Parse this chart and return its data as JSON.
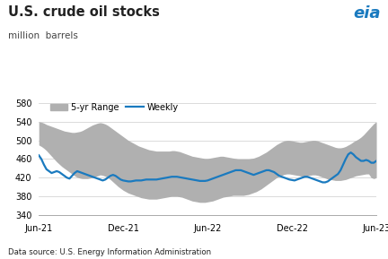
{
  "title": "U.S. crude oil stocks",
  "subtitle": "million  barrels",
  "background_color": "#ffffff",
  "range_color": "#b0b0b0",
  "weekly_color": "#1a7abf",
  "grid_color": "#cccccc",
  "data_source": "Data source: U.S. Energy Information Administration",
  "eia_color": "#1a7abf",
  "weekly_lw": 1.6,
  "ylim": [
    340,
    590
  ],
  "yticks": [
    340,
    380,
    420,
    460,
    500,
    540,
    580
  ],
  "x_tick_labels": [
    "Jun-21",
    "Dec-21",
    "Jun-22",
    "Dec-22",
    "Jun-23"
  ],
  "range_upper": [
    540,
    539,
    537,
    534,
    532,
    530,
    528,
    526,
    524,
    522,
    520,
    519,
    518,
    517,
    517,
    518,
    519,
    521,
    524,
    527,
    530,
    533,
    535,
    537,
    538,
    537,
    535,
    532,
    528,
    524,
    520,
    516,
    512,
    508,
    504,
    500,
    497,
    494,
    491,
    488,
    486,
    484,
    482,
    480,
    479,
    478,
    477,
    477,
    477,
    477,
    477,
    477,
    478,
    478,
    477,
    476,
    474,
    472,
    470,
    468,
    466,
    465,
    464,
    463,
    462,
    461,
    461,
    462,
    463,
    464,
    465,
    466,
    466,
    465,
    464,
    463,
    462,
    461,
    460,
    460,
    460,
    460,
    460,
    461,
    462,
    464,
    466,
    469,
    472,
    475,
    479,
    483,
    487,
    491,
    494,
    497,
    499,
    500,
    500,
    499,
    498,
    497,
    496,
    496,
    497,
    498,
    499,
    500,
    500,
    499,
    497,
    495,
    493,
    491,
    489,
    487,
    485,
    484,
    484,
    485,
    487,
    490,
    493,
    497,
    500,
    503,
    507,
    512,
    518,
    524,
    530,
    536,
    540
  ],
  "range_lower": [
    490,
    487,
    483,
    478,
    472,
    466,
    460,
    454,
    449,
    444,
    440,
    436,
    432,
    428,
    424,
    421,
    419,
    418,
    418,
    418,
    419,
    420,
    422,
    424,
    426,
    425,
    423,
    420,
    416,
    411,
    406,
    401,
    397,
    393,
    390,
    387,
    385,
    383,
    381,
    379,
    377,
    376,
    375,
    374,
    374,
    374,
    374,
    375,
    376,
    377,
    378,
    379,
    380,
    380,
    380,
    379,
    378,
    376,
    374,
    372,
    370,
    369,
    368,
    367,
    367,
    367,
    368,
    369,
    370,
    372,
    374,
    376,
    378,
    379,
    380,
    381,
    382,
    382,
    382,
    382,
    382,
    383,
    384,
    386,
    388,
    390,
    393,
    396,
    400,
    404,
    408,
    412,
    416,
    420,
    423,
    425,
    427,
    428,
    428,
    427,
    426,
    425,
    424,
    423,
    423,
    424,
    425,
    426,
    426,
    425,
    423,
    421,
    419,
    417,
    416,
    415,
    414,
    414,
    414,
    415,
    416,
    418,
    420,
    422,
    424,
    425,
    426,
    427,
    428,
    428,
    420,
    418,
    420
  ],
  "weekly": [
    468,
    460,
    448,
    438,
    434,
    430,
    432,
    434,
    432,
    428,
    424,
    420,
    418,
    424,
    430,
    434,
    432,
    430,
    428,
    426,
    424,
    422,
    420,
    418,
    416,
    414,
    416,
    420,
    424,
    426,
    424,
    420,
    416,
    414,
    413,
    412,
    412,
    413,
    414,
    414,
    414,
    415,
    416,
    416,
    416,
    416,
    416,
    417,
    418,
    419,
    420,
    421,
    422,
    422,
    422,
    421,
    420,
    419,
    418,
    417,
    416,
    415,
    414,
    413,
    413,
    413,
    414,
    416,
    418,
    420,
    422,
    424,
    426,
    428,
    430,
    432,
    434,
    436,
    436,
    436,
    434,
    432,
    430,
    428,
    426,
    428,
    430,
    432,
    434,
    436,
    436,
    434,
    432,
    428,
    424,
    422,
    420,
    418,
    416,
    415,
    414,
    416,
    418,
    420,
    422,
    422,
    420,
    418,
    416,
    414,
    412,
    410,
    410,
    412,
    416,
    420,
    424,
    428,
    436,
    448,
    460,
    470,
    474,
    470,
    464,
    460,
    456,
    456,
    458,
    456,
    452,
    452,
    456
  ]
}
